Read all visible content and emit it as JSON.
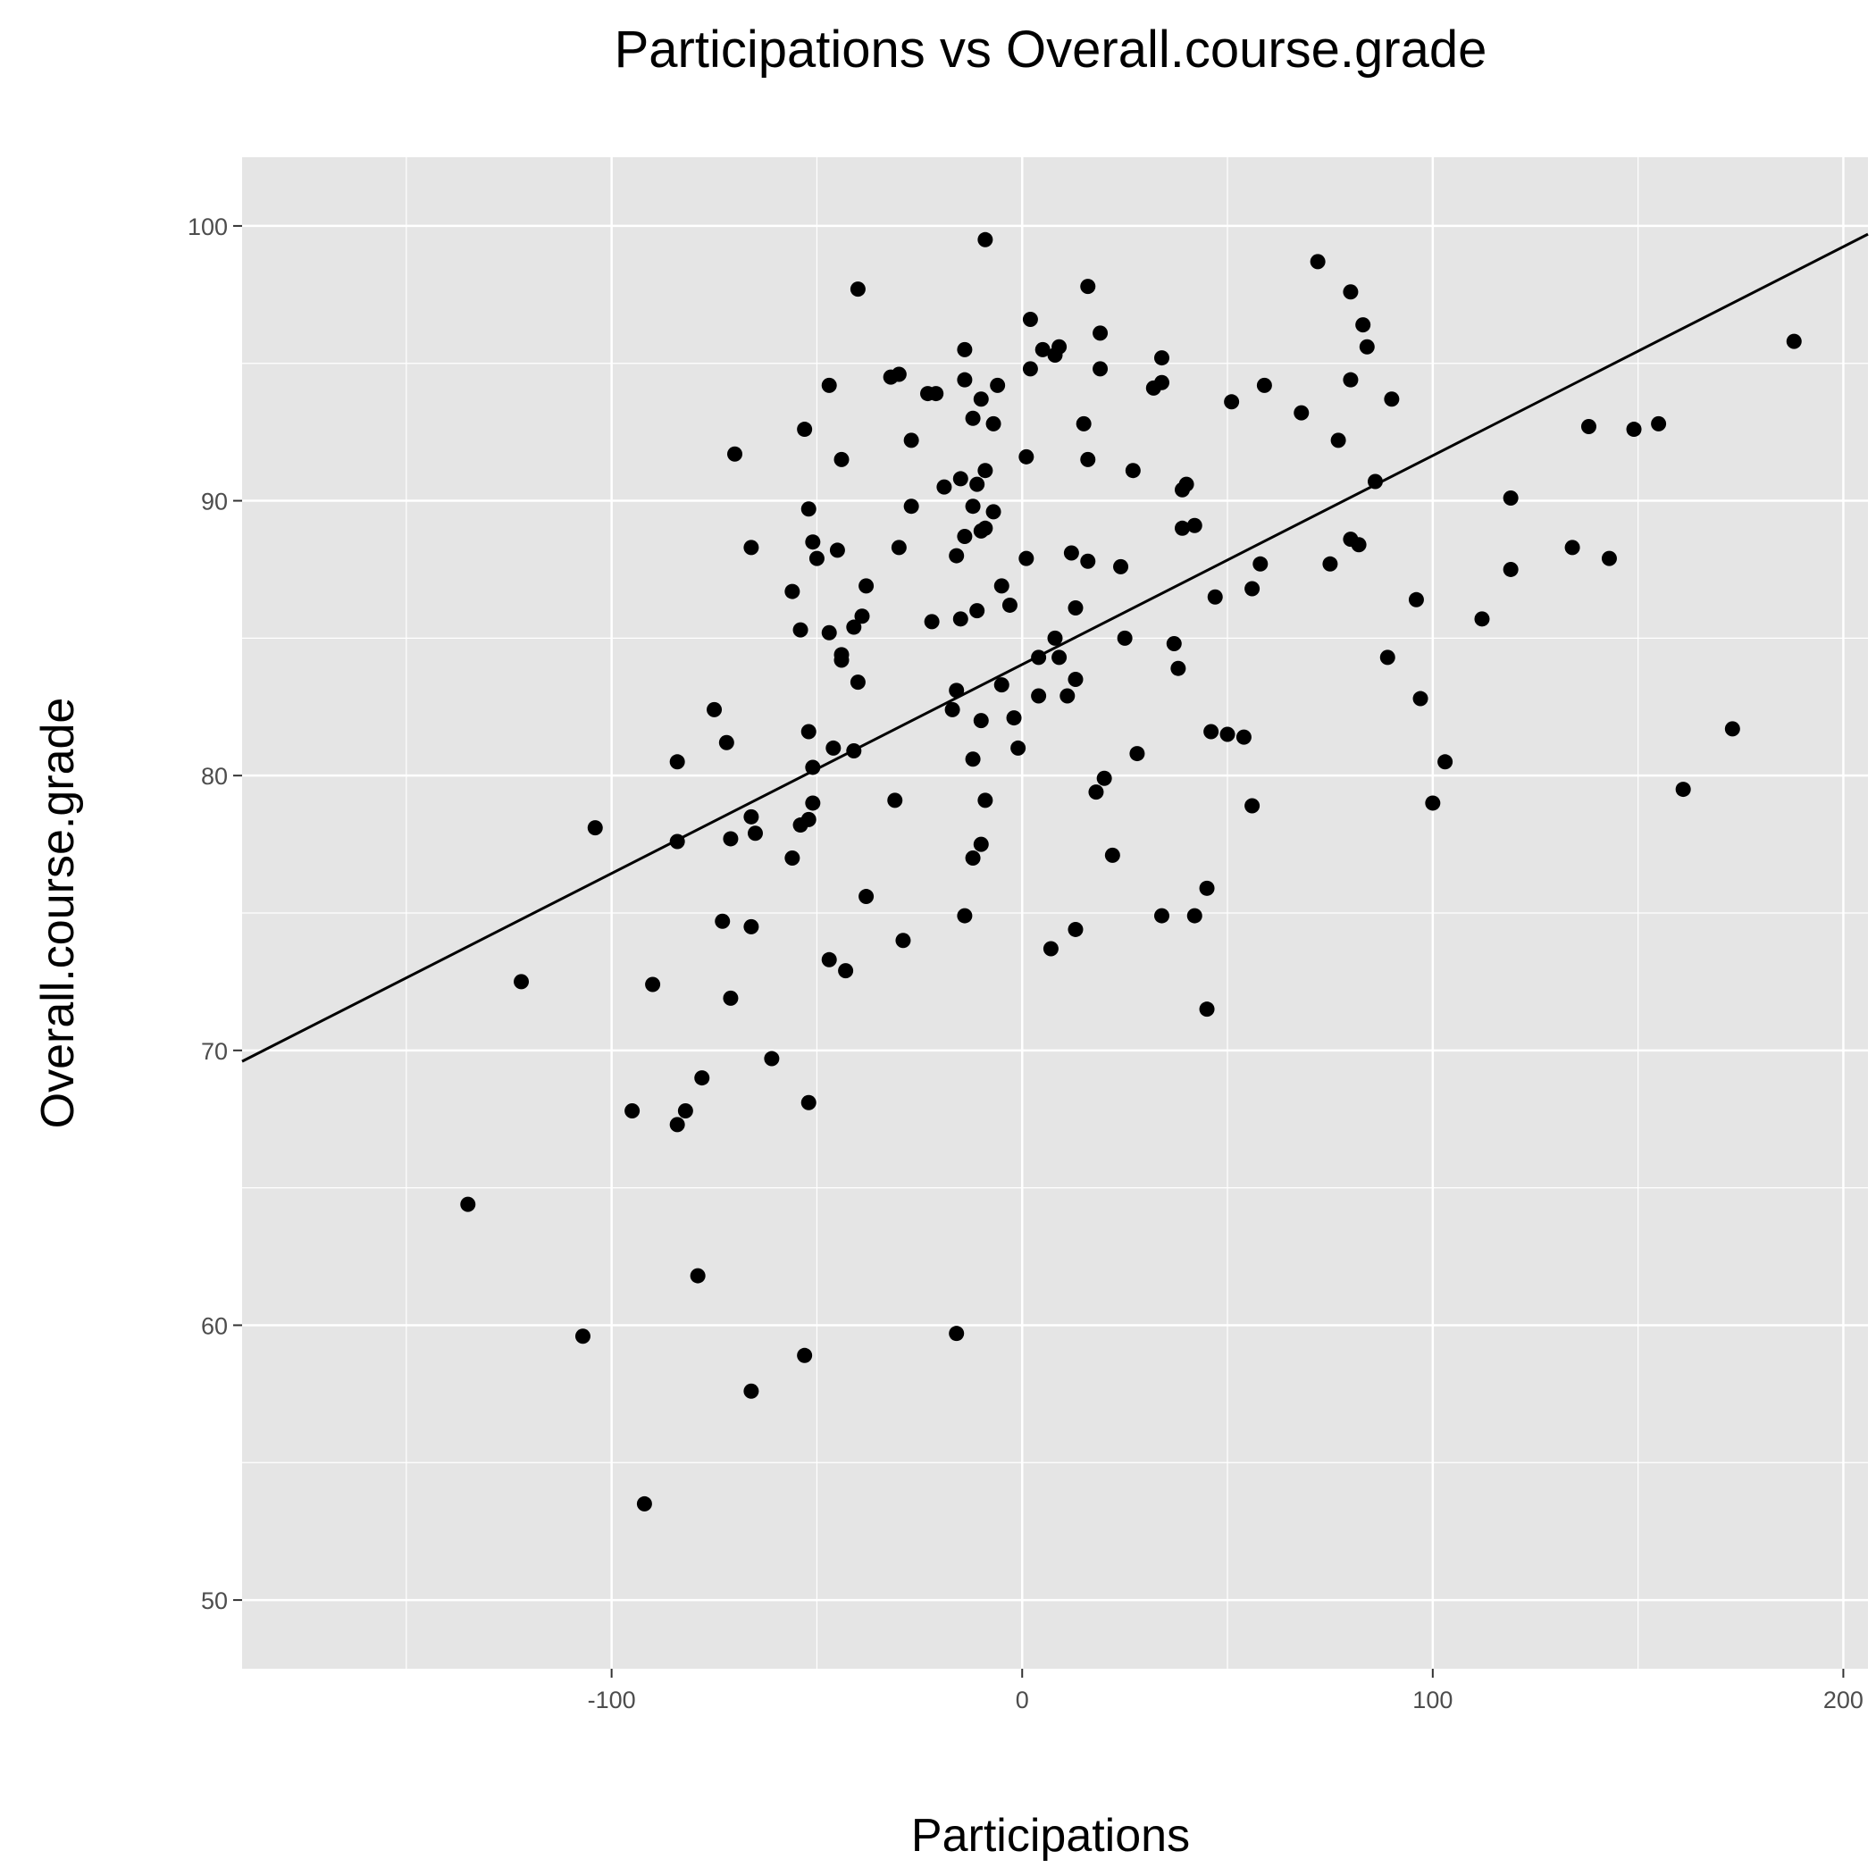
{
  "chart_data": {
    "type": "scatter",
    "title": "Participations vs Overall.course.grade",
    "xlabel": "Participations",
    "ylabel": "Overall.course.grade",
    "xlim": [
      -190,
      206
    ],
    "ylim": [
      47.5,
      102.5
    ],
    "xticks": [
      -100,
      0,
      100,
      200
    ],
    "xtick_labels": [
      "-100",
      "0",
      "100",
      "200"
    ],
    "yticks": [
      50,
      60,
      70,
      80,
      90,
      100
    ],
    "ytick_labels": [
      "50",
      "60",
      "70",
      "80",
      "90",
      "100"
    ],
    "grid": true,
    "colors": {
      "panel": "#e5e5e5",
      "grid": "#ffffff",
      "point": "#000000",
      "line": "#000000",
      "tick_text": "#4d4d4d"
    },
    "regression_line": {
      "x": [
        -190,
        206
      ],
      "y": [
        69.6,
        99.7
      ]
    },
    "points": [
      {
        "x": -135,
        "y": 64.4
      },
      {
        "x": -122,
        "y": 72.5
      },
      {
        "x": -107,
        "y": 59.6
      },
      {
        "x": -104,
        "y": 78.1
      },
      {
        "x": -95,
        "y": 67.8
      },
      {
        "x": -92,
        "y": 53.5
      },
      {
        "x": -90,
        "y": 72.4
      },
      {
        "x": -84,
        "y": 67.3
      },
      {
        "x": -84,
        "y": 77.6
      },
      {
        "x": -84,
        "y": 80.5
      },
      {
        "x": -82,
        "y": 67.8
      },
      {
        "x": -79,
        "y": 61.8
      },
      {
        "x": -78,
        "y": 69.0
      },
      {
        "x": -75,
        "y": 82.4
      },
      {
        "x": -73,
        "y": 74.7
      },
      {
        "x": -72,
        "y": 81.2
      },
      {
        "x": -71,
        "y": 71.9
      },
      {
        "x": -71,
        "y": 77.7
      },
      {
        "x": -70,
        "y": 91.7
      },
      {
        "x": -66,
        "y": 57.6
      },
      {
        "x": -66,
        "y": 74.5
      },
      {
        "x": -66,
        "y": 78.5
      },
      {
        "x": -65,
        "y": 77.9
      },
      {
        "x": -66,
        "y": 88.3
      },
      {
        "x": -61,
        "y": 69.7
      },
      {
        "x": -56,
        "y": 77.0
      },
      {
        "x": -56,
        "y": 86.7
      },
      {
        "x": -54,
        "y": 78.2
      },
      {
        "x": -54,
        "y": 85.3
      },
      {
        "x": -53,
        "y": 58.9
      },
      {
        "x": -53,
        "y": 92.6
      },
      {
        "x": -52,
        "y": 89.7
      },
      {
        "x": -52,
        "y": 68.1
      },
      {
        "x": -52,
        "y": 78.4
      },
      {
        "x": -52,
        "y": 81.6
      },
      {
        "x": -51,
        "y": 79.0
      },
      {
        "x": -51,
        "y": 80.3
      },
      {
        "x": -51,
        "y": 88.5
      },
      {
        "x": -50,
        "y": 87.9
      },
      {
        "x": -47,
        "y": 73.3
      },
      {
        "x": -47,
        "y": 85.2
      },
      {
        "x": -47,
        "y": 94.2
      },
      {
        "x": -46,
        "y": 81.0
      },
      {
        "x": -45,
        "y": 88.2
      },
      {
        "x": -44,
        "y": 84.2
      },
      {
        "x": -44,
        "y": 84.4
      },
      {
        "x": -44,
        "y": 91.5
      },
      {
        "x": -43,
        "y": 72.9
      },
      {
        "x": -41,
        "y": 80.9
      },
      {
        "x": -41,
        "y": 85.4
      },
      {
        "x": -40,
        "y": 83.4
      },
      {
        "x": -40,
        "y": 97.7
      },
      {
        "x": -39,
        "y": 85.8
      },
      {
        "x": -38,
        "y": 75.6
      },
      {
        "x": -38,
        "y": 86.9
      },
      {
        "x": -32,
        "y": 94.5
      },
      {
        "x": -31,
        "y": 79.1
      },
      {
        "x": -30,
        "y": 88.3
      },
      {
        "x": -30,
        "y": 94.6
      },
      {
        "x": -29,
        "y": 74.0
      },
      {
        "x": -27,
        "y": 89.8
      },
      {
        "x": -27,
        "y": 92.2
      },
      {
        "x": -23,
        "y": 93.9
      },
      {
        "x": -22,
        "y": 85.6
      },
      {
        "x": -21,
        "y": 93.9
      },
      {
        "x": -19,
        "y": 90.5
      },
      {
        "x": -17,
        "y": 82.4
      },
      {
        "x": -16,
        "y": 59.7
      },
      {
        "x": -16,
        "y": 83.1
      },
      {
        "x": -16,
        "y": 88.0
      },
      {
        "x": -15,
        "y": 85.7
      },
      {
        "x": -15,
        "y": 90.8
      },
      {
        "x": -14,
        "y": 74.9
      },
      {
        "x": -14,
        "y": 88.7
      },
      {
        "x": -14,
        "y": 94.4
      },
      {
        "x": -14,
        "y": 95.5
      },
      {
        "x": -12,
        "y": 77.0
      },
      {
        "x": -12,
        "y": 80.6
      },
      {
        "x": -12,
        "y": 89.8
      },
      {
        "x": -12,
        "y": 93.0
      },
      {
        "x": -11,
        "y": 86.0
      },
      {
        "x": -11,
        "y": 90.6
      },
      {
        "x": -10,
        "y": 77.5
      },
      {
        "x": -10,
        "y": 82.0
      },
      {
        "x": -10,
        "y": 88.9
      },
      {
        "x": -10,
        "y": 93.7
      },
      {
        "x": -9,
        "y": 79.1
      },
      {
        "x": -9,
        "y": 89.0
      },
      {
        "x": -9,
        "y": 91.1
      },
      {
        "x": -9,
        "y": 99.5
      },
      {
        "x": -7,
        "y": 89.6
      },
      {
        "x": -7,
        "y": 92.8
      },
      {
        "x": -6,
        "y": 94.2
      },
      {
        "x": -5,
        "y": 83.3
      },
      {
        "x": -5,
        "y": 86.9
      },
      {
        "x": -3,
        "y": 86.2
      },
      {
        "x": -2,
        "y": 82.1
      },
      {
        "x": -1,
        "y": 81.0
      },
      {
        "x": 1,
        "y": 87.9
      },
      {
        "x": 1,
        "y": 91.6
      },
      {
        "x": 2,
        "y": 94.8
      },
      {
        "x": 2,
        "y": 96.6
      },
      {
        "x": 4,
        "y": 82.9
      },
      {
        "x": 4,
        "y": 84.3
      },
      {
        "x": 5,
        "y": 95.5
      },
      {
        "x": 7,
        "y": 73.7
      },
      {
        "x": 8,
        "y": 85.0
      },
      {
        "x": 8,
        "y": 95.3
      },
      {
        "x": 9,
        "y": 84.3
      },
      {
        "x": 9,
        "y": 95.6
      },
      {
        "x": 11,
        "y": 82.9
      },
      {
        "x": 12,
        "y": 88.1
      },
      {
        "x": 13,
        "y": 74.4
      },
      {
        "x": 13,
        "y": 83.5
      },
      {
        "x": 13,
        "y": 86.1
      },
      {
        "x": 15,
        "y": 92.8
      },
      {
        "x": 16,
        "y": 87.8
      },
      {
        "x": 16,
        "y": 91.5
      },
      {
        "x": 16,
        "y": 97.8
      },
      {
        "x": 18,
        "y": 79.4
      },
      {
        "x": 19,
        "y": 94.8
      },
      {
        "x": 19,
        "y": 96.1
      },
      {
        "x": 20,
        "y": 79.9
      },
      {
        "x": 22,
        "y": 77.1
      },
      {
        "x": 24,
        "y": 87.6
      },
      {
        "x": 25,
        "y": 85.0
      },
      {
        "x": 27,
        "y": 91.1
      },
      {
        "x": 28,
        "y": 80.8
      },
      {
        "x": 32,
        "y": 94.1
      },
      {
        "x": 34,
        "y": 74.9
      },
      {
        "x": 34,
        "y": 94.3
      },
      {
        "x": 34,
        "y": 95.2
      },
      {
        "x": 37,
        "y": 84.8
      },
      {
        "x": 38,
        "y": 83.9
      },
      {
        "x": 39,
        "y": 89.0
      },
      {
        "x": 39,
        "y": 90.4
      },
      {
        "x": 40,
        "y": 90.6
      },
      {
        "x": 42,
        "y": 74.9
      },
      {
        "x": 42,
        "y": 89.1
      },
      {
        "x": 45,
        "y": 71.5
      },
      {
        "x": 45,
        "y": 75.9
      },
      {
        "x": 46,
        "y": 81.6
      },
      {
        "x": 47,
        "y": 86.5
      },
      {
        "x": 50,
        "y": 81.5
      },
      {
        "x": 51,
        "y": 93.6
      },
      {
        "x": 54,
        "y": 81.4
      },
      {
        "x": 56,
        "y": 78.9
      },
      {
        "x": 56,
        "y": 86.8
      },
      {
        "x": 58,
        "y": 87.7
      },
      {
        "x": 59,
        "y": 94.2
      },
      {
        "x": 68,
        "y": 93.2
      },
      {
        "x": 72,
        "y": 98.7
      },
      {
        "x": 75,
        "y": 87.7
      },
      {
        "x": 77,
        "y": 92.2
      },
      {
        "x": 80,
        "y": 88.6
      },
      {
        "x": 80,
        "y": 94.4
      },
      {
        "x": 80,
        "y": 97.6
      },
      {
        "x": 82,
        "y": 88.4
      },
      {
        "x": 83,
        "y": 96.4
      },
      {
        "x": 84,
        "y": 95.6
      },
      {
        "x": 86,
        "y": 90.7
      },
      {
        "x": 89,
        "y": 84.3
      },
      {
        "x": 90,
        "y": 93.7
      },
      {
        "x": 96,
        "y": 86.4
      },
      {
        "x": 97,
        "y": 82.8
      },
      {
        "x": 100,
        "y": 79.0
      },
      {
        "x": 103,
        "y": 80.5
      },
      {
        "x": 112,
        "y": 85.7
      },
      {
        "x": 119,
        "y": 87.5
      },
      {
        "x": 119,
        "y": 90.1
      },
      {
        "x": 134,
        "y": 88.3
      },
      {
        "x": 138,
        "y": 92.7
      },
      {
        "x": 143,
        "y": 87.9
      },
      {
        "x": 149,
        "y": 92.6
      },
      {
        "x": 155,
        "y": 92.8
      },
      {
        "x": 161,
        "y": 79.5
      },
      {
        "x": 173,
        "y": 81.7
      },
      {
        "x": 188,
        "y": 95.8
      }
    ]
  }
}
